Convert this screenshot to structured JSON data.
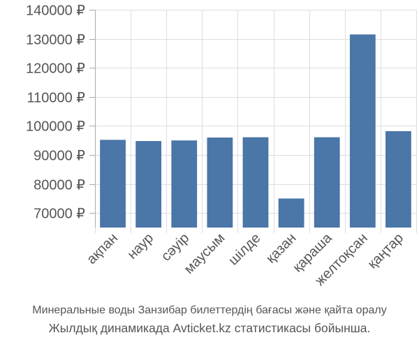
{
  "chart_data": {
    "type": "bar",
    "title": "",
    "xlabel": "",
    "ylabel": "",
    "categories": [
      "ақпан",
      "наур",
      "сәуір",
      "маусым",
      "шілде",
      "қазан",
      "қараша",
      "желтоқсан",
      "қаңтар"
    ],
    "values": [
      95200,
      94800,
      95000,
      96000,
      96100,
      75000,
      96100,
      131500,
      98200
    ],
    "ylim": [
      65000,
      140000
    ],
    "yticks": [
      70000,
      80000,
      90000,
      100000,
      110000,
      120000,
      130000,
      140000
    ],
    "ytick_labels": [
      "70000 ₽",
      "80000 ₽",
      "90000 ₽",
      "100000 ₽",
      "110000 ₽",
      "120000 ₽",
      "130000 ₽",
      "140000 ₽"
    ],
    "grid": true,
    "bar_color": "#4a76a8",
    "grid_color": "#dddddd",
    "axis_color": "#aaaaaa",
    "text_color": "#555555"
  },
  "caption": {
    "line1": "Минеральные воды Занзибар билеттердің бағасы және қайта оралу",
    "line2": "Жылдық динамикада Avticket.kz статистикасы бойынша."
  }
}
